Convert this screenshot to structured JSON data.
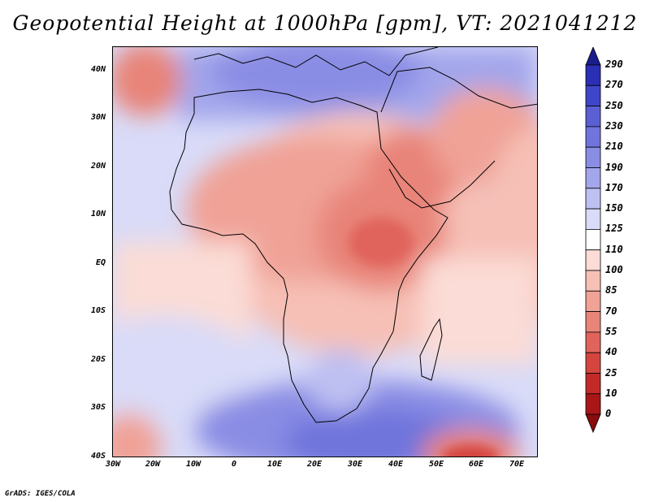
{
  "title": "Geopotential Height at 1000hPa [gpm], VT: 2021041212",
  "credit": "GrADS: IGES/COLA",
  "lat_labels": [
    "40N",
    "30N",
    "20N",
    "10N",
    "EQ",
    "10S",
    "20S",
    "30S",
    "40S"
  ],
  "lon_labels": [
    "30W",
    "20W",
    "10W",
    "0",
    "10E",
    "20E",
    "30E",
    "40E",
    "50E",
    "60E",
    "70E"
  ],
  "colorbar": {
    "levels": [
      "290",
      "270",
      "250",
      "230",
      "210",
      "190",
      "170",
      "150",
      "125",
      "110",
      "100",
      "85",
      "70",
      "55",
      "40",
      "25",
      "10",
      "0"
    ],
    "colors": [
      "#1a1e8c",
      "#2a2fb4",
      "#3f45c8",
      "#5a5fd4",
      "#7074dc",
      "#8a8de4",
      "#a3a6eb",
      "#bec0f2",
      "#d9dbf8",
      "#ffffff",
      "#fbdcd6",
      "#f6c0b6",
      "#f0a297",
      "#e88479",
      "#e0645b",
      "#d4453f",
      "#c22a28",
      "#a81617",
      "#8a0c0e"
    ]
  },
  "map": {
    "extent_lon": [
      -30,
      75
    ],
    "extent_lat": [
      -40,
      45
    ],
    "shading": "geopotential height shaded, red low / blue high"
  }
}
